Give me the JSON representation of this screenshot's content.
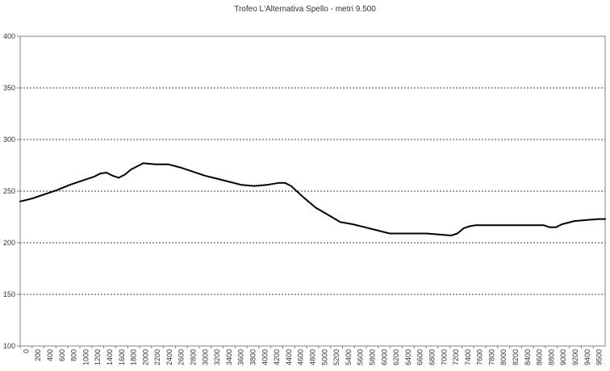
{
  "chart_data": {
    "type": "line",
    "title": "Trofeo L'Alternativa Spello - metri 9.500",
    "xlabel": "",
    "ylabel": "",
    "ylim": [
      100,
      400
    ],
    "yticks": [
      100,
      150,
      200,
      250,
      300,
      350,
      400
    ],
    "grid": true,
    "legend": "none",
    "x_tick_labels": [
      "0",
      "200",
      "400",
      "600",
      "800",
      "1000",
      "1200",
      "1400",
      "1600",
      "1800",
      "2000",
      "2200",
      "2400",
      "2600",
      "2800",
      "3000",
      "3200",
      "3400",
      "3600",
      "3800",
      "4000",
      "4200",
      "4400",
      "4600",
      "4800",
      "5000",
      "5200",
      "5400",
      "5600",
      "5800",
      "6000",
      "6200",
      "6400",
      "6600",
      "6800",
      "7000",
      "7200",
      "7400",
      "7600",
      "7800",
      "8000",
      "8200",
      "8400",
      "8600",
      "8800",
      "9000",
      "9200",
      "9400",
      "9500"
    ],
    "series": [
      {
        "color": "#000000",
        "x": [
          0,
          200,
          400,
          600,
          800,
          1000,
          1200,
          1300,
          1400,
          1500,
          1600,
          1700,
          1800,
          2000,
          2200,
          2400,
          2600,
          2800,
          3000,
          3200,
          3400,
          3600,
          3800,
          4000,
          4200,
          4300,
          4400,
          4600,
          4800,
          5000,
          5200,
          5400,
          5600,
          5800,
          6000,
          6200,
          6400,
          6600,
          6800,
          7000,
          7100,
          7200,
          7300,
          7400,
          7600,
          7800,
          8000,
          8200,
          8400,
          8500,
          8600,
          8700,
          8800,
          9000,
          9200,
          9400,
          9500
        ],
        "values": [
          240,
          243,
          247,
          251,
          256,
          260,
          264,
          267,
          268,
          265,
          263,
          266,
          271,
          277,
          276,
          276,
          273,
          269,
          265,
          262,
          259,
          256,
          255,
          256,
          258,
          258,
          255,
          244,
          234,
          227,
          220,
          218,
          215,
          212,
          209,
          209,
          209,
          209,
          208,
          207,
          209,
          214,
          216,
          217,
          217,
          217,
          217,
          217,
          217,
          217,
          215,
          215,
          218,
          221,
          222,
          223,
          223
        ]
      }
    ]
  }
}
